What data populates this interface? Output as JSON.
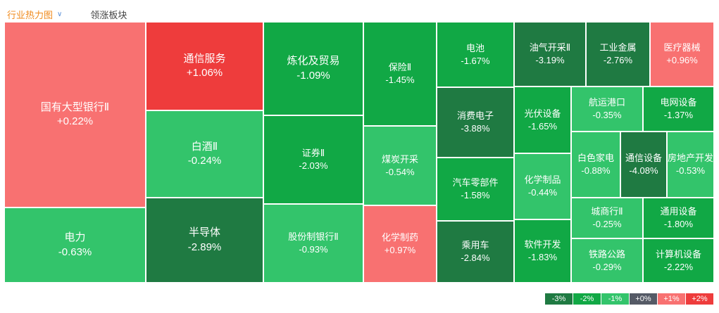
{
  "header": {
    "active_tab": "行业热力图",
    "tab_2": "领涨板块"
  },
  "colors": {
    "strong_down": "#1f7a42",
    "mid_down": "#11a845",
    "weak_down": "#33c46b",
    "neutral": "#555a66",
    "weak_up": "#f87171",
    "strong_up": "#ee3c3c"
  },
  "chart_data": {
    "type": "heatmap",
    "unit": "%",
    "cells": [
      {
        "name": "国有大型银行Ⅱ",
        "change": "+0.22%",
        "value": 0.22
      },
      {
        "name": "电力",
        "change": "-0.63%",
        "value": -0.63
      },
      {
        "name": "通信服务",
        "change": "+1.06%",
        "value": 1.06
      },
      {
        "name": "白酒Ⅱ",
        "change": "-0.24%",
        "value": -0.24
      },
      {
        "name": "半导体",
        "change": "-2.89%",
        "value": -2.89
      },
      {
        "name": "炼化及贸易",
        "change": "-1.09%",
        "value": -1.09
      },
      {
        "name": "证券Ⅱ",
        "change": "-2.03%",
        "value": -2.03
      },
      {
        "name": "股份制银行Ⅱ",
        "change": "-0.93%",
        "value": -0.93
      },
      {
        "name": "保险Ⅱ",
        "change": "-1.45%",
        "value": -1.45
      },
      {
        "name": "煤炭开采",
        "change": "-0.54%",
        "value": -0.54
      },
      {
        "name": "化学制药",
        "change": "+0.97%",
        "value": 0.97
      },
      {
        "name": "电池",
        "change": "-1.67%",
        "value": -1.67
      },
      {
        "name": "消费电子",
        "change": "-3.88%",
        "value": -3.88
      },
      {
        "name": "汽车零部件",
        "change": "-1.58%",
        "value": -1.58
      },
      {
        "name": "乘用车",
        "change": "-2.84%",
        "value": -2.84
      },
      {
        "name": "油气开采Ⅱ",
        "change": "-3.19%",
        "value": -3.19
      },
      {
        "name": "工业金属",
        "change": "-2.76%",
        "value": -2.76
      },
      {
        "name": "医疗器械",
        "change": "+0.96%",
        "value": 0.96
      },
      {
        "name": "光伏设备",
        "change": "-1.65%",
        "value": -1.65
      },
      {
        "name": "航运港口",
        "change": "-0.35%",
        "value": -0.35
      },
      {
        "name": "电网设备",
        "change": "-1.37%",
        "value": -1.37
      },
      {
        "name": "化学制品",
        "change": "-0.44%",
        "value": -0.44
      },
      {
        "name": "白色家电",
        "change": "-0.88%",
        "value": -0.88
      },
      {
        "name": "通信设备",
        "change": "-4.08%",
        "value": -4.08
      },
      {
        "name": "房地产开发",
        "change": "-0.53%",
        "value": -0.53
      },
      {
        "name": "城商行Ⅱ",
        "change": "-0.25%",
        "value": -0.25
      },
      {
        "name": "通用设备",
        "change": "-1.80%",
        "value": -1.8
      },
      {
        "name": "软件开发",
        "change": "-1.83%",
        "value": -1.83
      },
      {
        "name": "铁路公路",
        "change": "-0.29%",
        "value": -0.29
      },
      {
        "name": "计算机设备",
        "change": "-2.22%",
        "value": -2.22
      }
    ],
    "legend": [
      {
        "label": "-3%",
        "color": "#1f7a42"
      },
      {
        "label": "-2%",
        "color": "#11a845"
      },
      {
        "label": "-1%",
        "color": "#33c46b"
      },
      {
        "label": "+0%",
        "color": "#555a66"
      },
      {
        "label": "+1%",
        "color": "#f87171"
      },
      {
        "label": "+2%",
        "color": "#ee3c3c"
      }
    ]
  }
}
